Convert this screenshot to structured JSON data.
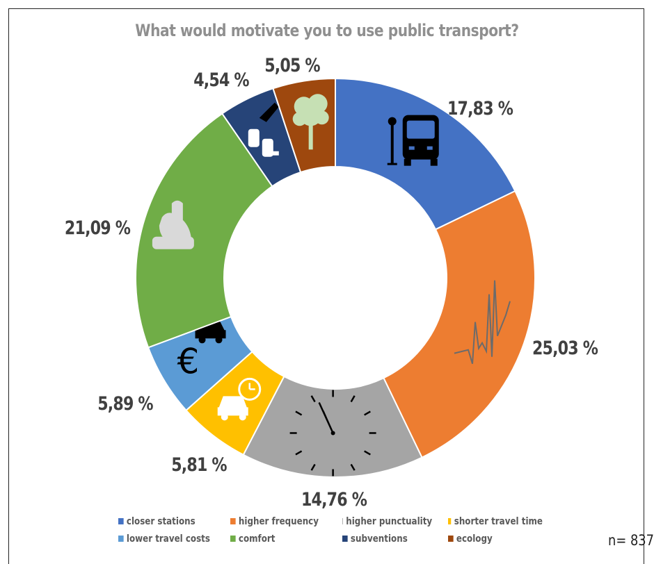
{
  "chart_data": {
    "type": "pie",
    "title": "What would motivate you to use public transport?",
    "slices": [
      {
        "name": "closer stations",
        "value": 17.83,
        "label": "17,83 %",
        "color": "#4472C4",
        "icon": "bus-stop-icon"
      },
      {
        "name": "higher frequency",
        "value": 25.03,
        "label": "25,03 %",
        "color": "#ED7D31",
        "icon": "frequency-wave-icon"
      },
      {
        "name": "higher punctuality",
        "value": 14.76,
        "label": "14,76 %",
        "color": "#A5A5A5",
        "icon": "clock-icon"
      },
      {
        "name": "shorter travel time",
        "value": 5.81,
        "label": "5,81 %",
        "color": "#FFC000",
        "icon": "car-clock-icon"
      },
      {
        "name": "lower travel costs",
        "value": 5.89,
        "label": "5,89 %",
        "color": "#5B9BD5",
        "icon": "euro-car-icon"
      },
      {
        "name": "comfort",
        "value": 21.09,
        "label": "21,09 %",
        "color": "#70AD47",
        "icon": "seat-icon"
      },
      {
        "name": "subventions",
        "value": 4.54,
        "label": "4,54 %",
        "color": "#264478",
        "icon": "seats-icon"
      },
      {
        "name": "ecology",
        "value": 5.05,
        "label": "5,05 %",
        "color": "#9E480E",
        "icon": "tree-icon"
      }
    ],
    "legend_position": "bottom",
    "annotation": "n= 837"
  }
}
